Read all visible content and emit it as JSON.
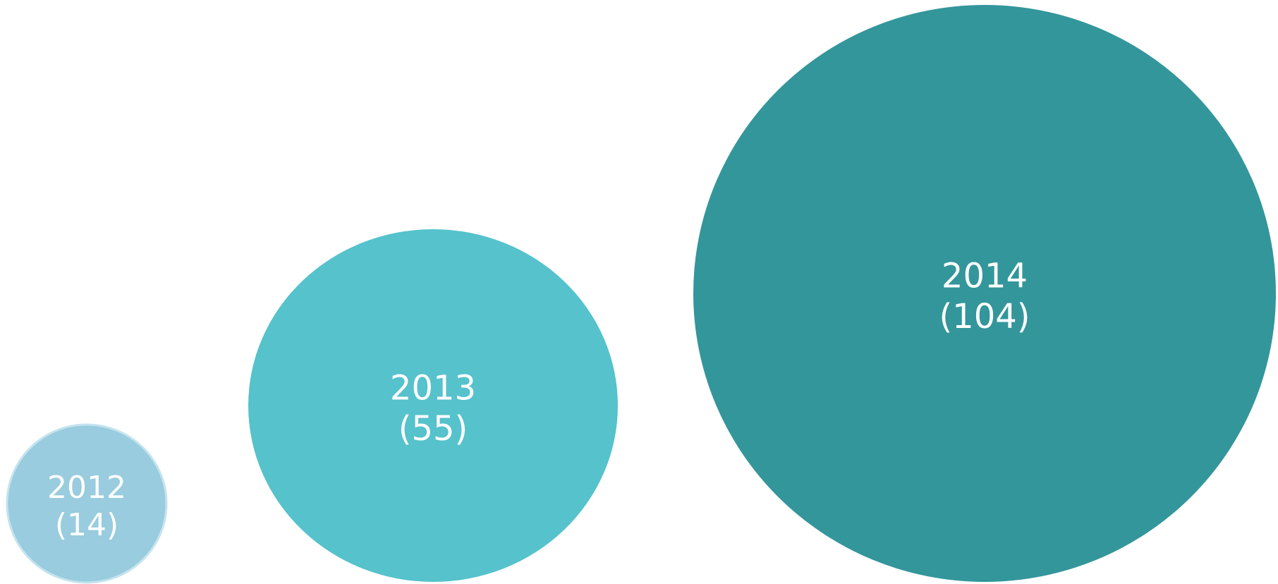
{
  "chart_data": {
    "type": "bubble",
    "title": "",
    "xlabel": "",
    "ylabel": "",
    "legend": "none",
    "grid": false,
    "points": [
      {
        "label": "2012",
        "value": 14,
        "value_text": "(14)",
        "color": "#98CCDE"
      },
      {
        "label": "2013",
        "value": 55,
        "value_text": "(55)",
        "color": "#55C2CC"
      },
      {
        "label": "2014",
        "value": 104,
        "value_text": "(104)",
        "color": "#33969B"
      }
    ]
  }
}
